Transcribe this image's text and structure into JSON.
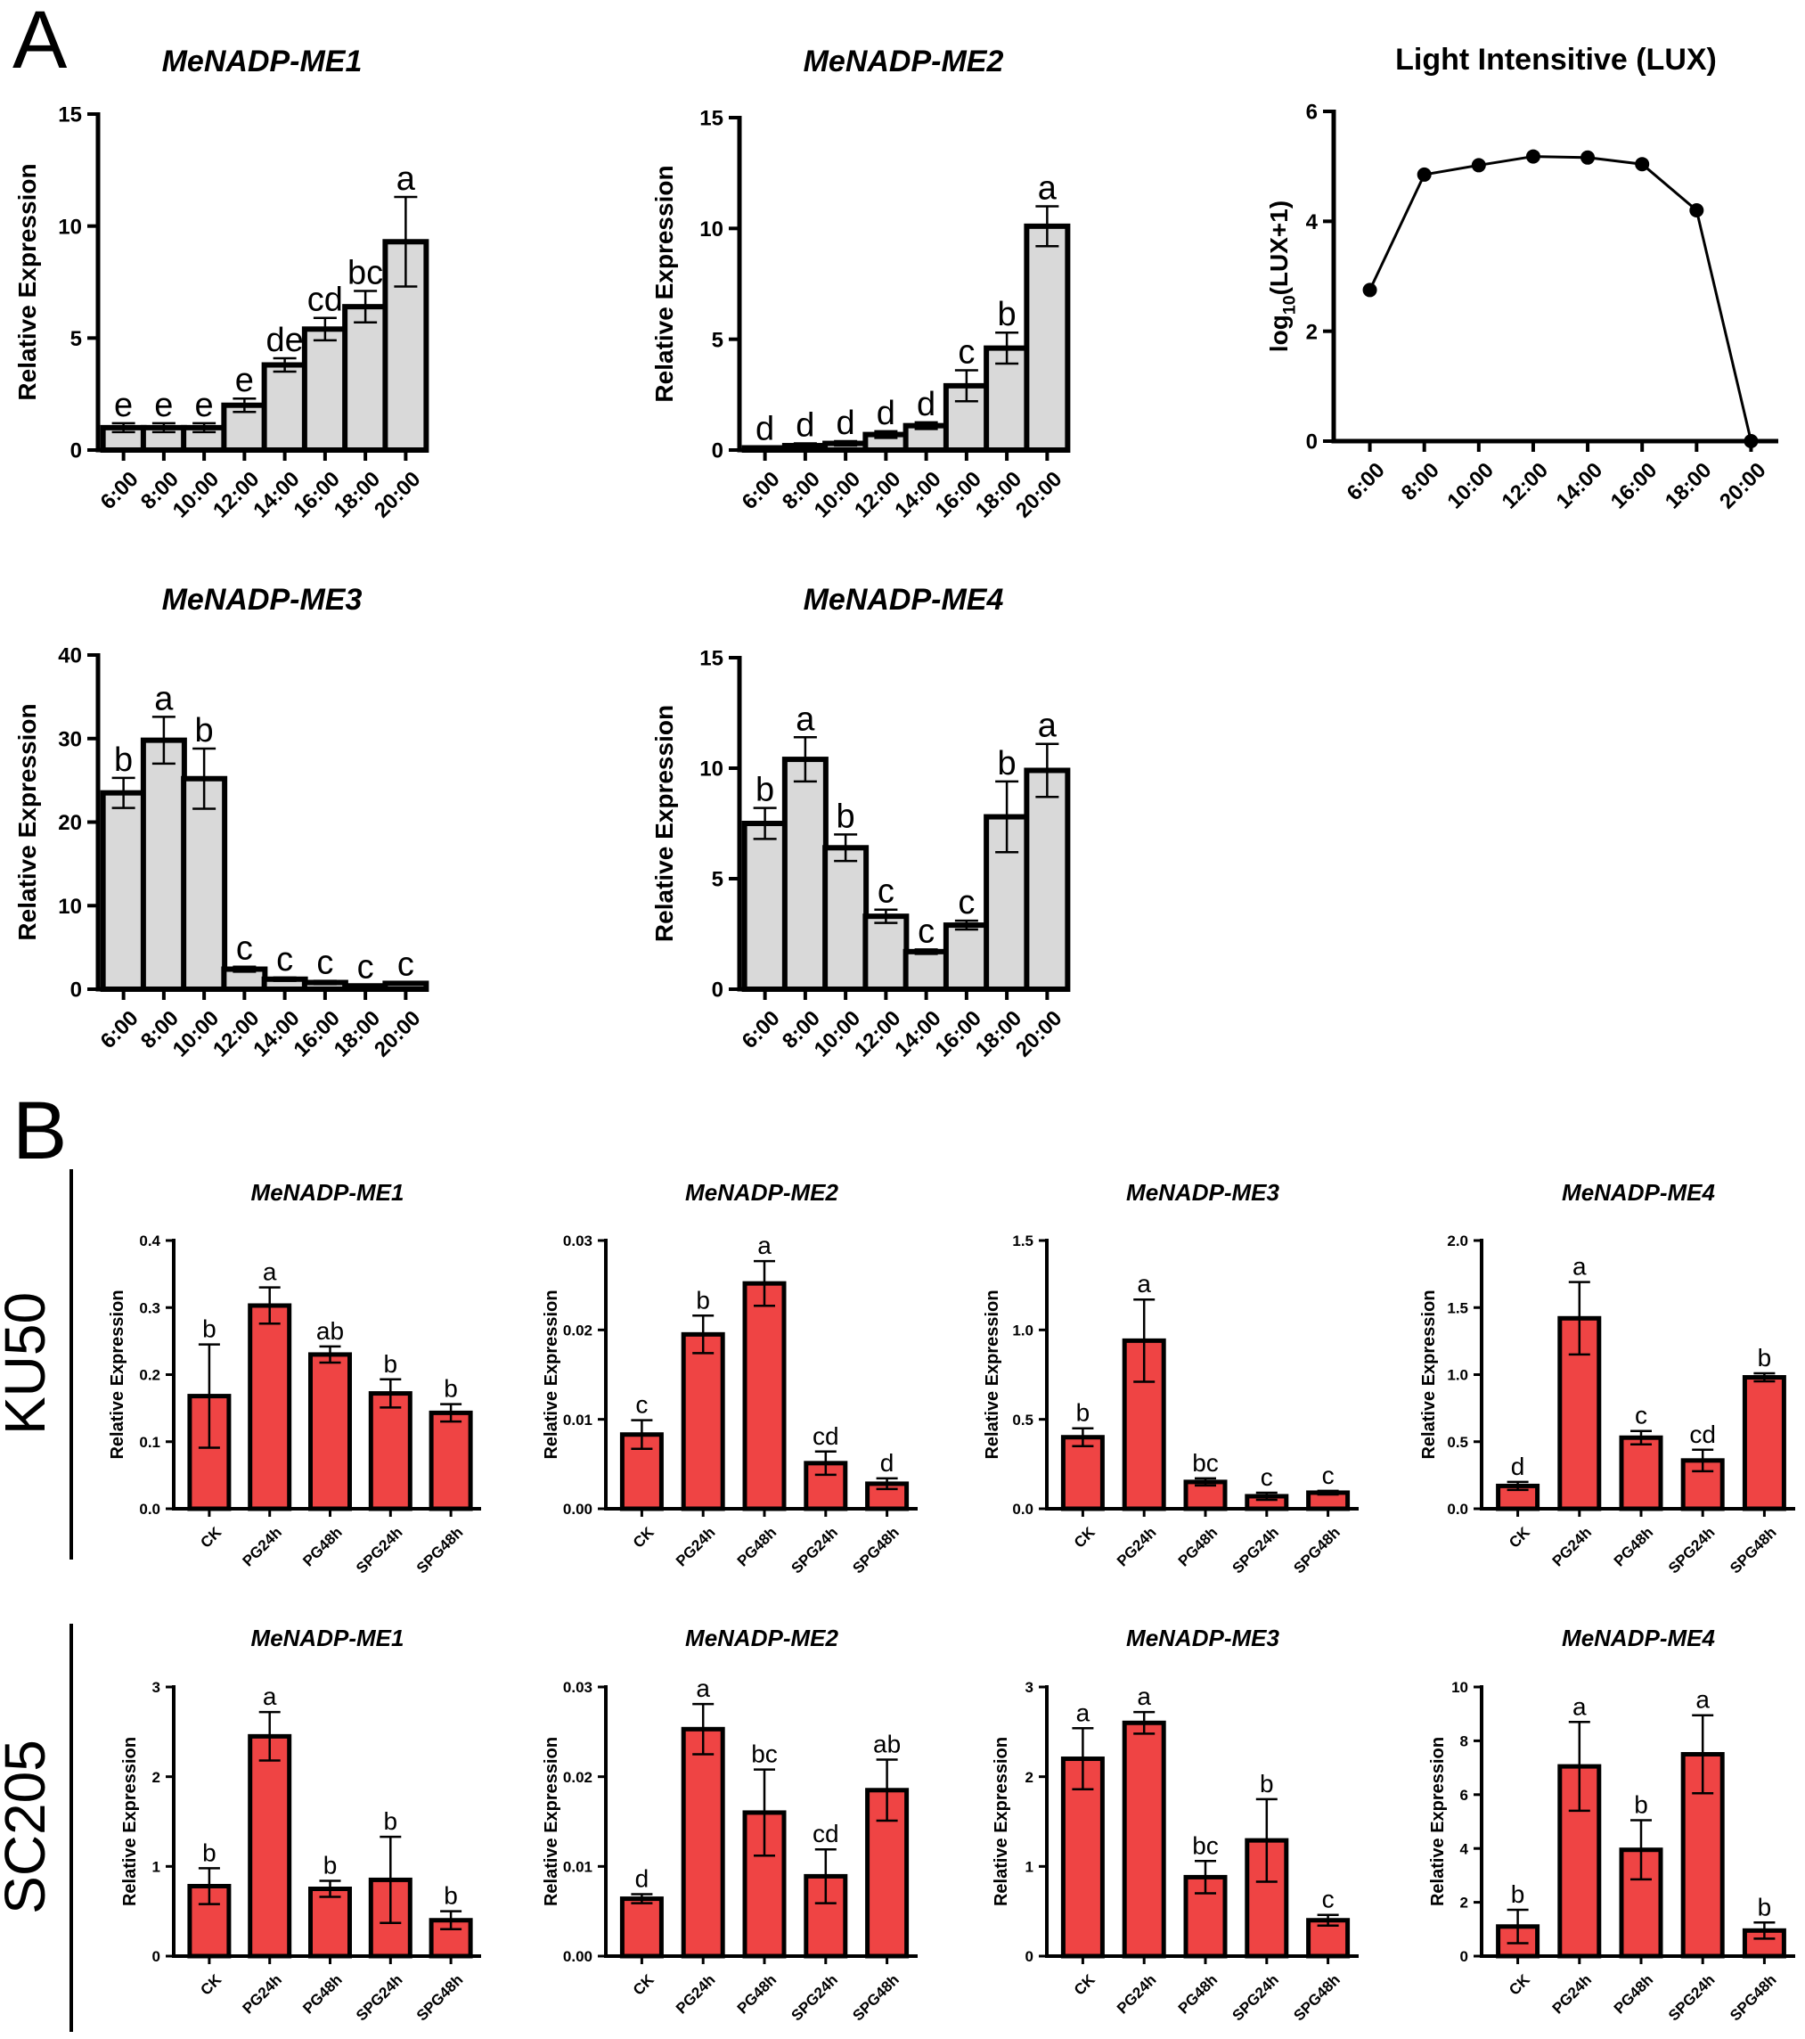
{
  "panels": {
    "a": "A",
    "b": "B"
  },
  "groups": {
    "top": "KU50",
    "bottom": "SC205"
  },
  "colors": {
    "gray_bar": "#d9d9d9",
    "red_bar": "#ef4444",
    "line": "#000000",
    "axis": "#000000"
  },
  "chart_data": [
    {
      "id": "A1",
      "type": "bar",
      "title": "MeNADP-ME1",
      "ylabel": "Relative Expression",
      "ylim": [
        0,
        15
      ],
      "yticks": [
        0,
        5,
        10,
        15
      ],
      "categories": [
        "6:00",
        "8:00",
        "10:00",
        "12:00",
        "14:00",
        "16:00",
        "18:00",
        "20:00"
      ],
      "values": [
        1.0,
        1.0,
        1.0,
        2.0,
        3.8,
        5.4,
        6.4,
        9.3
      ],
      "errors": [
        0.2,
        0.2,
        0.2,
        0.3,
        0.3,
        0.5,
        0.7,
        2.0
      ],
      "labels": [
        "e",
        "e",
        "e",
        "e",
        "de",
        "cd",
        "bc",
        "a"
      ]
    },
    {
      "id": "A2",
      "type": "bar",
      "title": "MeNADP-ME2",
      "ylabel": "Relative Expression",
      "ylim": [
        0,
        15
      ],
      "yticks": [
        0,
        5,
        10,
        15
      ],
      "categories": [
        "6:00",
        "8:00",
        "10:00",
        "12:00",
        "14:00",
        "16:00",
        "18:00",
        "20:00"
      ],
      "values": [
        0.1,
        0.2,
        0.3,
        0.7,
        1.1,
        2.9,
        4.6,
        10.1
      ],
      "errors": [
        0.05,
        0.1,
        0.1,
        0.15,
        0.15,
        0.7,
        0.7,
        0.9
      ],
      "labels": [
        "d",
        "d",
        "d",
        "d",
        "d",
        "c",
        "b",
        "a"
      ]
    },
    {
      "id": "A3",
      "type": "line",
      "title": "Light Intensitive (LUX)",
      "ylabel": "log10(LUX+1)",
      "ylabel_main": "log",
      "ylabel_sub": "10",
      "ylabel_rest": "(LUX+1)",
      "ylim": [
        0,
        6
      ],
      "yticks": [
        0,
        2,
        4,
        6
      ],
      "categories": [
        "6:00",
        "8:00",
        "10:00",
        "12:00",
        "14:00",
        "16:00",
        "18:00",
        "20:00"
      ],
      "values": [
        2.75,
        4.85,
        5.02,
        5.18,
        5.16,
        5.04,
        4.2,
        0
      ]
    },
    {
      "id": "A4",
      "type": "bar",
      "title": "MeNADP-ME3",
      "ylabel": "Relative Expression",
      "ylim": [
        0,
        40
      ],
      "yticks": [
        0,
        10,
        20,
        30,
        40
      ],
      "categories": [
        "6:00",
        "8:00",
        "10:00",
        "12:00",
        "14:00",
        "16:00",
        "18:00",
        "20:00"
      ],
      "values": [
        23.5,
        29.8,
        25.2,
        2.4,
        1.2,
        0.8,
        0.4,
        0.7
      ],
      "errors": [
        1.8,
        2.8,
        3.6,
        0.3,
        0.2,
        0.2,
        0.1,
        0.1
      ],
      "labels": [
        "b",
        "a",
        "b",
        "c",
        "c",
        "c",
        "c",
        "c"
      ]
    },
    {
      "id": "A5",
      "type": "bar",
      "title": "MeNADP-ME4",
      "ylabel": "Relative Expression",
      "ylim": [
        0,
        15
      ],
      "yticks": [
        0,
        5,
        10,
        15
      ],
      "categories": [
        "6:00",
        "8:00",
        "10:00",
        "12:00",
        "14:00",
        "16:00",
        "18:00",
        "20:00"
      ],
      "values": [
        7.5,
        10.4,
        6.4,
        3.3,
        1.7,
        2.9,
        7.8,
        9.9
      ],
      "errors": [
        0.7,
        1.0,
        0.6,
        0.3,
        0.1,
        0.2,
        1.6,
        1.2
      ],
      "labels": [
        "b",
        "a",
        "b",
        "c",
        "c",
        "c",
        "b",
        "a"
      ]
    },
    {
      "id": "B1",
      "type": "bar",
      "title": "MeNADP-ME1",
      "group": "KU50",
      "ylabel": "Relative Expression",
      "ylim": [
        0,
        0.4
      ],
      "yticks": [
        "0.0",
        "0.1",
        "0.2",
        "0.3",
        "0.4"
      ],
      "categories": [
        "CK",
        "PG24h",
        "PG48h",
        "SPG24h",
        "SPG48h"
      ],
      "values": [
        0.168,
        0.303,
        0.23,
        0.172,
        0.143
      ],
      "errors": [
        0.077,
        0.027,
        0.012,
        0.021,
        0.013
      ],
      "labels": [
        "b",
        "a",
        "ab",
        "b",
        "b"
      ]
    },
    {
      "id": "B2",
      "type": "bar",
      "title": "MeNADP-ME2",
      "group": "KU50",
      "ylabel": "Relative Expression",
      "ylim": [
        0,
        0.03
      ],
      "yticks": [
        "0.00",
        "0.01",
        "0.02",
        "0.03"
      ],
      "categories": [
        "CK",
        "PG24h",
        "PG48h",
        "SPG24h",
        "SPG48h"
      ],
      "values": [
        0.0083,
        0.0195,
        0.0252,
        0.0051,
        0.0028
      ],
      "errors": [
        0.0016,
        0.0021,
        0.0025,
        0.0013,
        0.0006
      ],
      "labels": [
        "c",
        "b",
        "a",
        "cd",
        "d"
      ]
    },
    {
      "id": "B3",
      "type": "bar",
      "title": "MeNADP-ME3",
      "group": "KU50",
      "ylabel": "Relative Expression",
      "ylim": [
        0,
        1.5
      ],
      "yticks": [
        "0.0",
        "0.5",
        "1.0",
        "1.5"
      ],
      "categories": [
        "CK",
        "PG24h",
        "PG48h",
        "SPG24h",
        "SPG48h"
      ],
      "values": [
        0.4,
        0.94,
        0.15,
        0.07,
        0.09
      ],
      "errors": [
        0.05,
        0.23,
        0.02,
        0.02,
        0.01
      ],
      "labels": [
        "b",
        "a",
        "bc",
        "c",
        "c"
      ]
    },
    {
      "id": "B4",
      "type": "bar",
      "title": "MeNADP-ME4",
      "group": "KU50",
      "ylabel": "Relative Expression",
      "ylim": [
        0,
        2.0
      ],
      "yticks": [
        "0.0",
        "0.5",
        "1.0",
        "1.5",
        "2.0"
      ],
      "categories": [
        "CK",
        "PG24h",
        "PG48h",
        "SPG24h",
        "SPG48h"
      ],
      "values": [
        0.17,
        1.42,
        0.53,
        0.36,
        0.98
      ],
      "errors": [
        0.03,
        0.27,
        0.05,
        0.08,
        0.03
      ],
      "labels": [
        "d",
        "a",
        "c",
        "cd",
        "b"
      ]
    },
    {
      "id": "B5",
      "type": "bar",
      "title": "MeNADP-ME1",
      "group": "SC205",
      "ylabel": "Relative Expression",
      "ylim": [
        0,
        3
      ],
      "yticks": [
        "0",
        "1",
        "2",
        "3"
      ],
      "categories": [
        "CK",
        "PG24h",
        "PG48h",
        "SPG24h",
        "SPG48h"
      ],
      "values": [
        0.78,
        2.45,
        0.75,
        0.85,
        0.4
      ],
      "errors": [
        0.2,
        0.27,
        0.09,
        0.48,
        0.1
      ],
      "labels": [
        "b",
        "a",
        "b",
        "b",
        "b"
      ]
    },
    {
      "id": "B6",
      "type": "bar",
      "title": "MeNADP-ME2",
      "group": "SC205",
      "ylabel": "Relative Expression",
      "ylim": [
        0,
        0.03
      ],
      "yticks": [
        "0.00",
        "0.01",
        "0.02",
        "0.03"
      ],
      "categories": [
        "CK",
        "PG24h",
        "PG48h",
        "SPG24h",
        "SPG48h"
      ],
      "values": [
        0.0064,
        0.0253,
        0.016,
        0.0089,
        0.0185
      ],
      "errors": [
        0.0005,
        0.0028,
        0.0048,
        0.003,
        0.0034
      ],
      "labels": [
        "d",
        "a",
        "bc",
        "cd",
        "ab"
      ]
    },
    {
      "id": "B7",
      "type": "bar",
      "title": "MeNADP-ME3",
      "group": "SC205",
      "ylabel": "Relative Expression",
      "ylim": [
        0,
        3
      ],
      "yticks": [
        "0",
        "1",
        "2",
        "3"
      ],
      "categories": [
        "CK",
        "PG24h",
        "PG48h",
        "SPG24h",
        "SPG48h"
      ],
      "values": [
        2.2,
        2.6,
        0.88,
        1.29,
        0.4
      ],
      "errors": [
        0.34,
        0.12,
        0.18,
        0.46,
        0.06
      ],
      "labels": [
        "a",
        "a",
        "bc",
        "b",
        "c"
      ]
    },
    {
      "id": "B8",
      "type": "bar",
      "title": "MeNADP-ME4",
      "group": "SC205",
      "ylabel": "Relative Expression",
      "ylim": [
        0,
        10
      ],
      "yticks": [
        "0",
        "2",
        "4",
        "6",
        "8",
        "10"
      ],
      "categories": [
        "CK",
        "PG24h",
        "PG48h",
        "SPG24h",
        "SPG48h"
      ],
      "values": [
        1.1,
        7.05,
        3.95,
        7.5,
        0.95
      ],
      "errors": [
        0.62,
        1.65,
        1.1,
        1.45,
        0.3
      ],
      "labels": [
        "b",
        "a",
        "b",
        "a",
        "b"
      ]
    }
  ]
}
